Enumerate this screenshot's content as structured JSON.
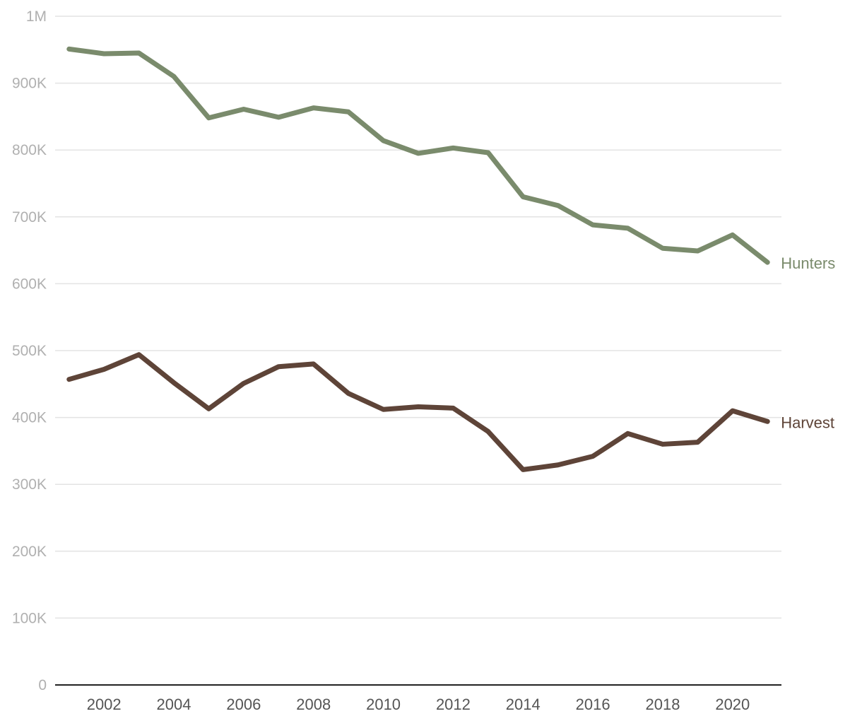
{
  "chart_data": {
    "type": "line",
    "title": "",
    "xlabel": "",
    "ylabel": "",
    "x": [
      2001,
      2002,
      2003,
      2004,
      2005,
      2006,
      2007,
      2008,
      2009,
      2010,
      2011,
      2012,
      2013,
      2014,
      2015,
      2016,
      2017,
      2018,
      2019,
      2020,
      2021
    ],
    "xticks": [
      "2002",
      "2004",
      "2006",
      "2008",
      "2010",
      "2012",
      "2014",
      "2016",
      "2018",
      "2020"
    ],
    "xlim": [
      2000.6,
      2021.4
    ],
    "ylim": [
      0,
      1000000
    ],
    "yticks": [
      {
        "value": 0,
        "label": "0"
      },
      {
        "value": 100000,
        "label": "100K"
      },
      {
        "value": 200000,
        "label": "200K"
      },
      {
        "value": 300000,
        "label": "300K"
      },
      {
        "value": 400000,
        "label": "400K"
      },
      {
        "value": 500000,
        "label": "500K"
      },
      {
        "value": 600000,
        "label": "600K"
      },
      {
        "value": 700000,
        "label": "700K"
      },
      {
        "value": 800000,
        "label": "800K"
      },
      {
        "value": 900000,
        "label": "900K"
      },
      {
        "value": 1000000,
        "label": "1M"
      }
    ],
    "grid": true,
    "legend": "inline-right",
    "series": [
      {
        "name": "Hunters",
        "color": "#7a8b6c",
        "values": [
          951000,
          944000,
          945000,
          910000,
          848000,
          861000,
          849000,
          863000,
          857000,
          814000,
          795000,
          803000,
          796000,
          730000,
          717000,
          688000,
          683000,
          653000,
          649000,
          673000,
          632000
        ]
      },
      {
        "name": "Harvest",
        "color": "#5e4438",
        "values": [
          457000,
          472000,
          494000,
          452000,
          413000,
          451000,
          476000,
          480000,
          436000,
          412000,
          416000,
          414000,
          379000,
          322000,
          329000,
          342000,
          376000,
          360000,
          363000,
          410000,
          394000
        ]
      }
    ]
  }
}
